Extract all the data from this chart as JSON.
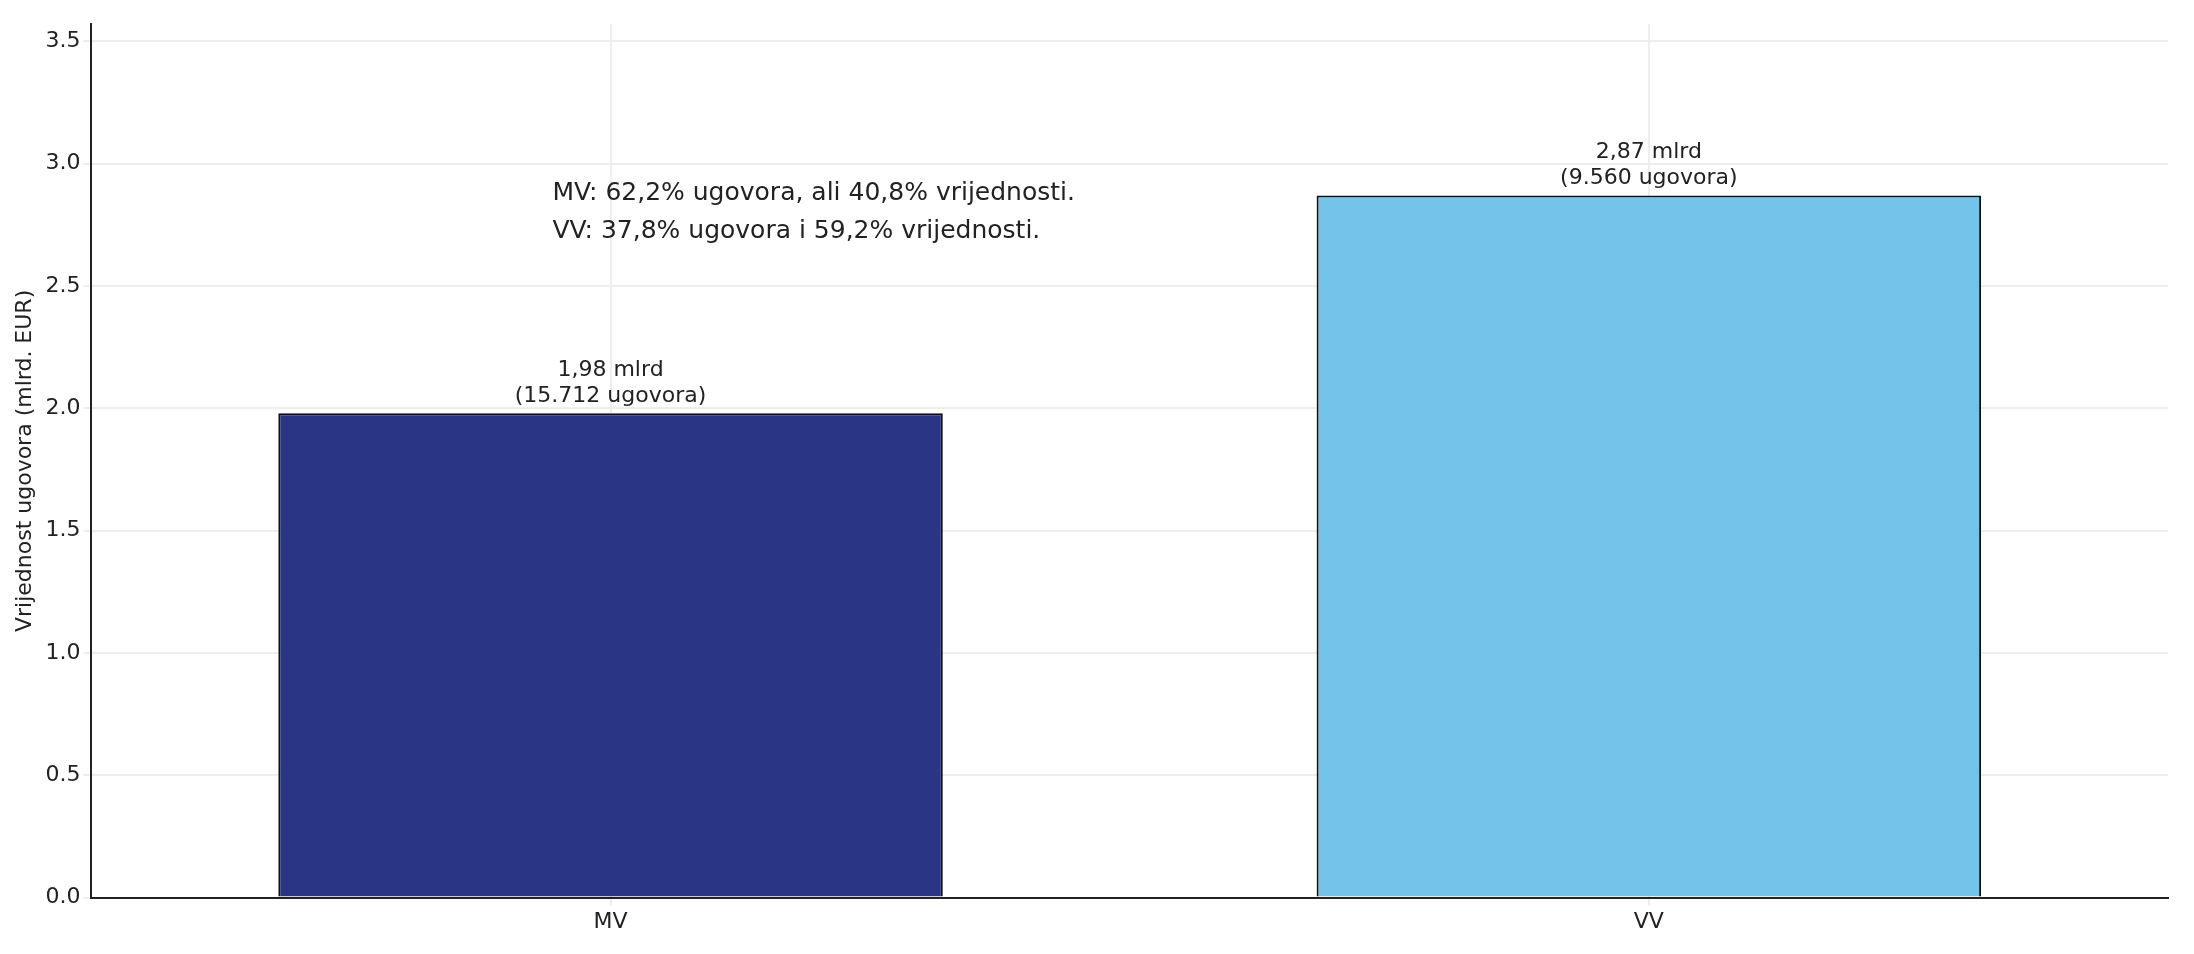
{
  "chart_data": {
    "type": "bar",
    "ylabel": "Vrijednost ugovora (mlrd. EUR)",
    "categories": [
      "MV",
      "VV"
    ],
    "values": [
      1.98,
      2.87
    ],
    "colors": [
      "#2b3585",
      "#73c3ea"
    ],
    "value_labels": [
      "1,98 mlrd\n(15.712 ugovora)",
      "2,87 mlrd\n(9.560 ugovora)"
    ],
    "ylim": [
      0,
      3.57
    ],
    "yticks": [
      {
        "value": 0,
        "label": "0.0"
      },
      {
        "value": 0.5,
        "label": "0.5"
      },
      {
        "value": 1,
        "label": "1.0"
      },
      {
        "value": 1.5,
        "label": "1.5"
      },
      {
        "value": 2,
        "label": "2.0"
      },
      {
        "value": 2.5,
        "label": "2.5"
      },
      {
        "value": 3,
        "label": "3.0"
      },
      {
        "value": 3.5,
        "label": "3.5"
      }
    ],
    "grid": true,
    "annotations": [
      "MV: 62,2% ugovora, ali 40,8% vrijednosti.\nVV: 37,8% ugovora i 59,2% vrijednosti."
    ]
  }
}
